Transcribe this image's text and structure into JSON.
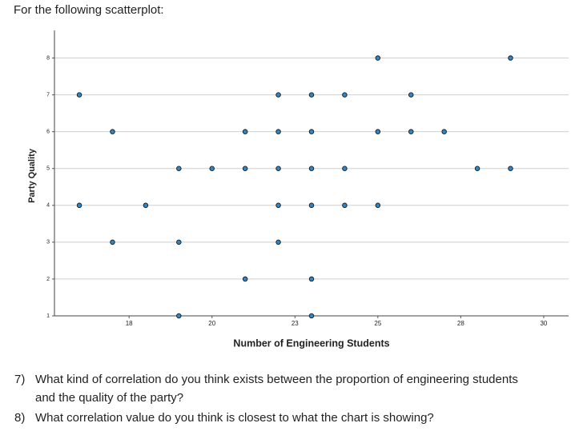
{
  "intro": "For the following scatterplot:",
  "chart_data": {
    "type": "scatter",
    "x_label": "Number of Engineering Students",
    "y_label": "Party Quality",
    "series": [
      {
        "color": "#2e86c9",
        "x": [
          25,
          29,
          16,
          22,
          23,
          24,
          26,
          17,
          21,
          22,
          23,
          25,
          26,
          27,
          19,
          20,
          21,
          22,
          23,
          24,
          28,
          29,
          16,
          18,
          22,
          23,
          24,
          25,
          17,
          19,
          22,
          21,
          23,
          19,
          23
        ],
        "values": [
          8,
          8,
          7,
          7,
          7,
          7,
          7,
          6,
          6,
          6,
          6,
          6,
          6,
          6,
          5,
          5,
          5,
          5,
          5,
          5,
          5,
          5,
          4,
          4,
          4,
          4,
          4,
          4,
          3,
          3,
          3,
          2,
          2,
          1,
          1
        ]
      }
    ],
    "xlim": [
      15.25,
      30.75
    ],
    "xticks": [
      {
        "value": 17.5,
        "label": "18"
      },
      20,
      {
        "value": 22.5,
        "label": "23"
      },
      25,
      {
        "value": 27.5,
        "label": "28"
      },
      30
    ],
    "ylim": [
      1,
      8.75
    ],
    "yticks": [
      1,
      2,
      3,
      4,
      5,
      6,
      7,
      8
    ],
    "grid": true
  },
  "questions": [
    {
      "number": "7)",
      "text": "What kind of correlation do you think exists between the proportion of engineering students and the quality of the party?"
    },
    {
      "number": "8)",
      "text": "What correlation value do you think is closest to what the chart is showing?"
    }
  ]
}
